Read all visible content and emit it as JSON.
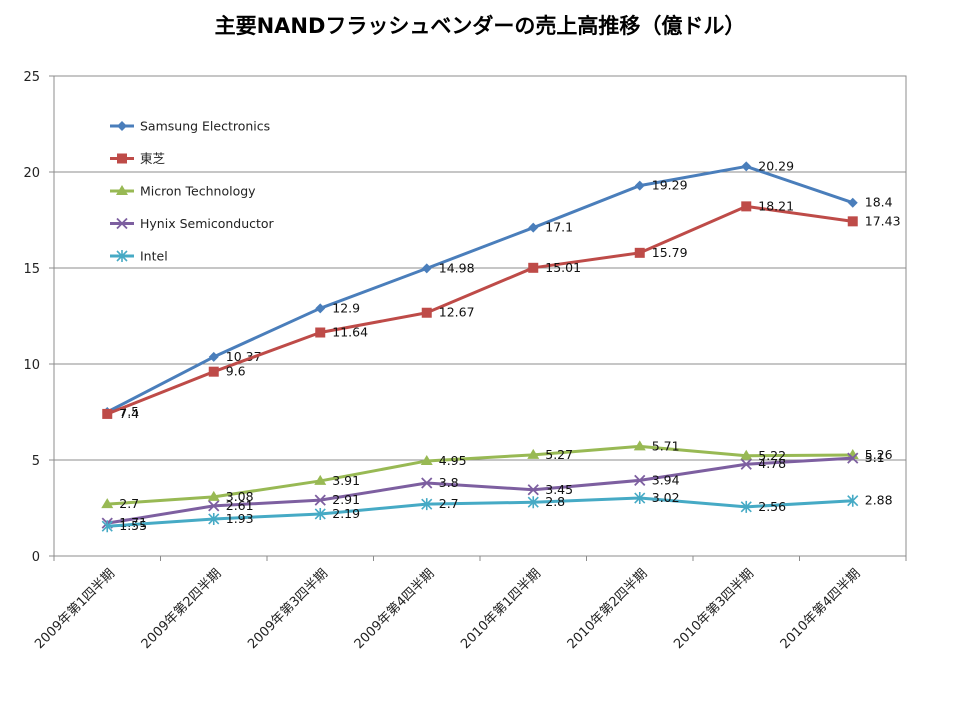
{
  "chart_data": {
    "type": "line",
    "title": "主要NANDフラッシュベンダーの売上高推移（億ドル）",
    "xlabel": "",
    "ylabel": "",
    "ylim": [
      0,
      25
    ],
    "yticks": [
      0,
      5,
      10,
      15,
      20,
      25
    ],
    "grid": true,
    "legend_position": "top-left inside",
    "categories": [
      "2009年第1四半期",
      "2009年第2四半期",
      "2009年第3四半期",
      "2009年第4四半期",
      "2010年第1四半期",
      "2010年第2四半期",
      "2010年第3四半期",
      "2010年第4四半期"
    ],
    "series": [
      {
        "name": "Samsung Electronics",
        "color": "#4a7ebb",
        "marker": "diamond",
        "values": [
          7.5,
          10.37,
          12.9,
          14.98,
          17.1,
          19.29,
          20.29,
          18.4
        ],
        "labels": [
          "7.5",
          "10.37",
          "12.9",
          "14.98",
          "17.1",
          "19.29",
          "20.29",
          "18.4"
        ]
      },
      {
        "name": "東芝",
        "color": "#be4b48",
        "marker": "square",
        "values": [
          7.4,
          9.6,
          11.64,
          12.67,
          15.01,
          15.79,
          18.21,
          17.43
        ],
        "labels": [
          "7.4",
          "9.6",
          "11.64",
          "12.67",
          "15.01",
          "15.79",
          "18.21",
          "17.43"
        ]
      },
      {
        "name": "Micron Technology",
        "color": "#98b954",
        "marker": "triangle",
        "values": [
          2.7,
          3.08,
          3.91,
          4.95,
          5.27,
          5.71,
          5.22,
          5.26
        ],
        "labels": [
          "2.7",
          "3.08",
          "3.91",
          "4.95",
          "5.27",
          "5.71",
          "5.22",
          "5.26"
        ]
      },
      {
        "name": "Hynix Semiconductor",
        "color": "#7d5fa0",
        "marker": "x",
        "values": [
          1.71,
          2.61,
          2.91,
          3.8,
          3.45,
          3.94,
          4.78,
          5.1
        ],
        "labels": [
          "1.71",
          "2.61",
          "2.91",
          "3.8",
          "3.45",
          "3.94",
          "4.78",
          "5.1"
        ]
      },
      {
        "name": "Intel",
        "color": "#46aac5",
        "marker": "star",
        "values": [
          1.55,
          1.93,
          2.19,
          2.7,
          2.8,
          3.02,
          2.56,
          2.88
        ],
        "labels": [
          "1.55",
          "1.93",
          "2.19",
          "2.7",
          "2.8",
          "3.02",
          "2.56",
          "2.88"
        ]
      }
    ]
  }
}
